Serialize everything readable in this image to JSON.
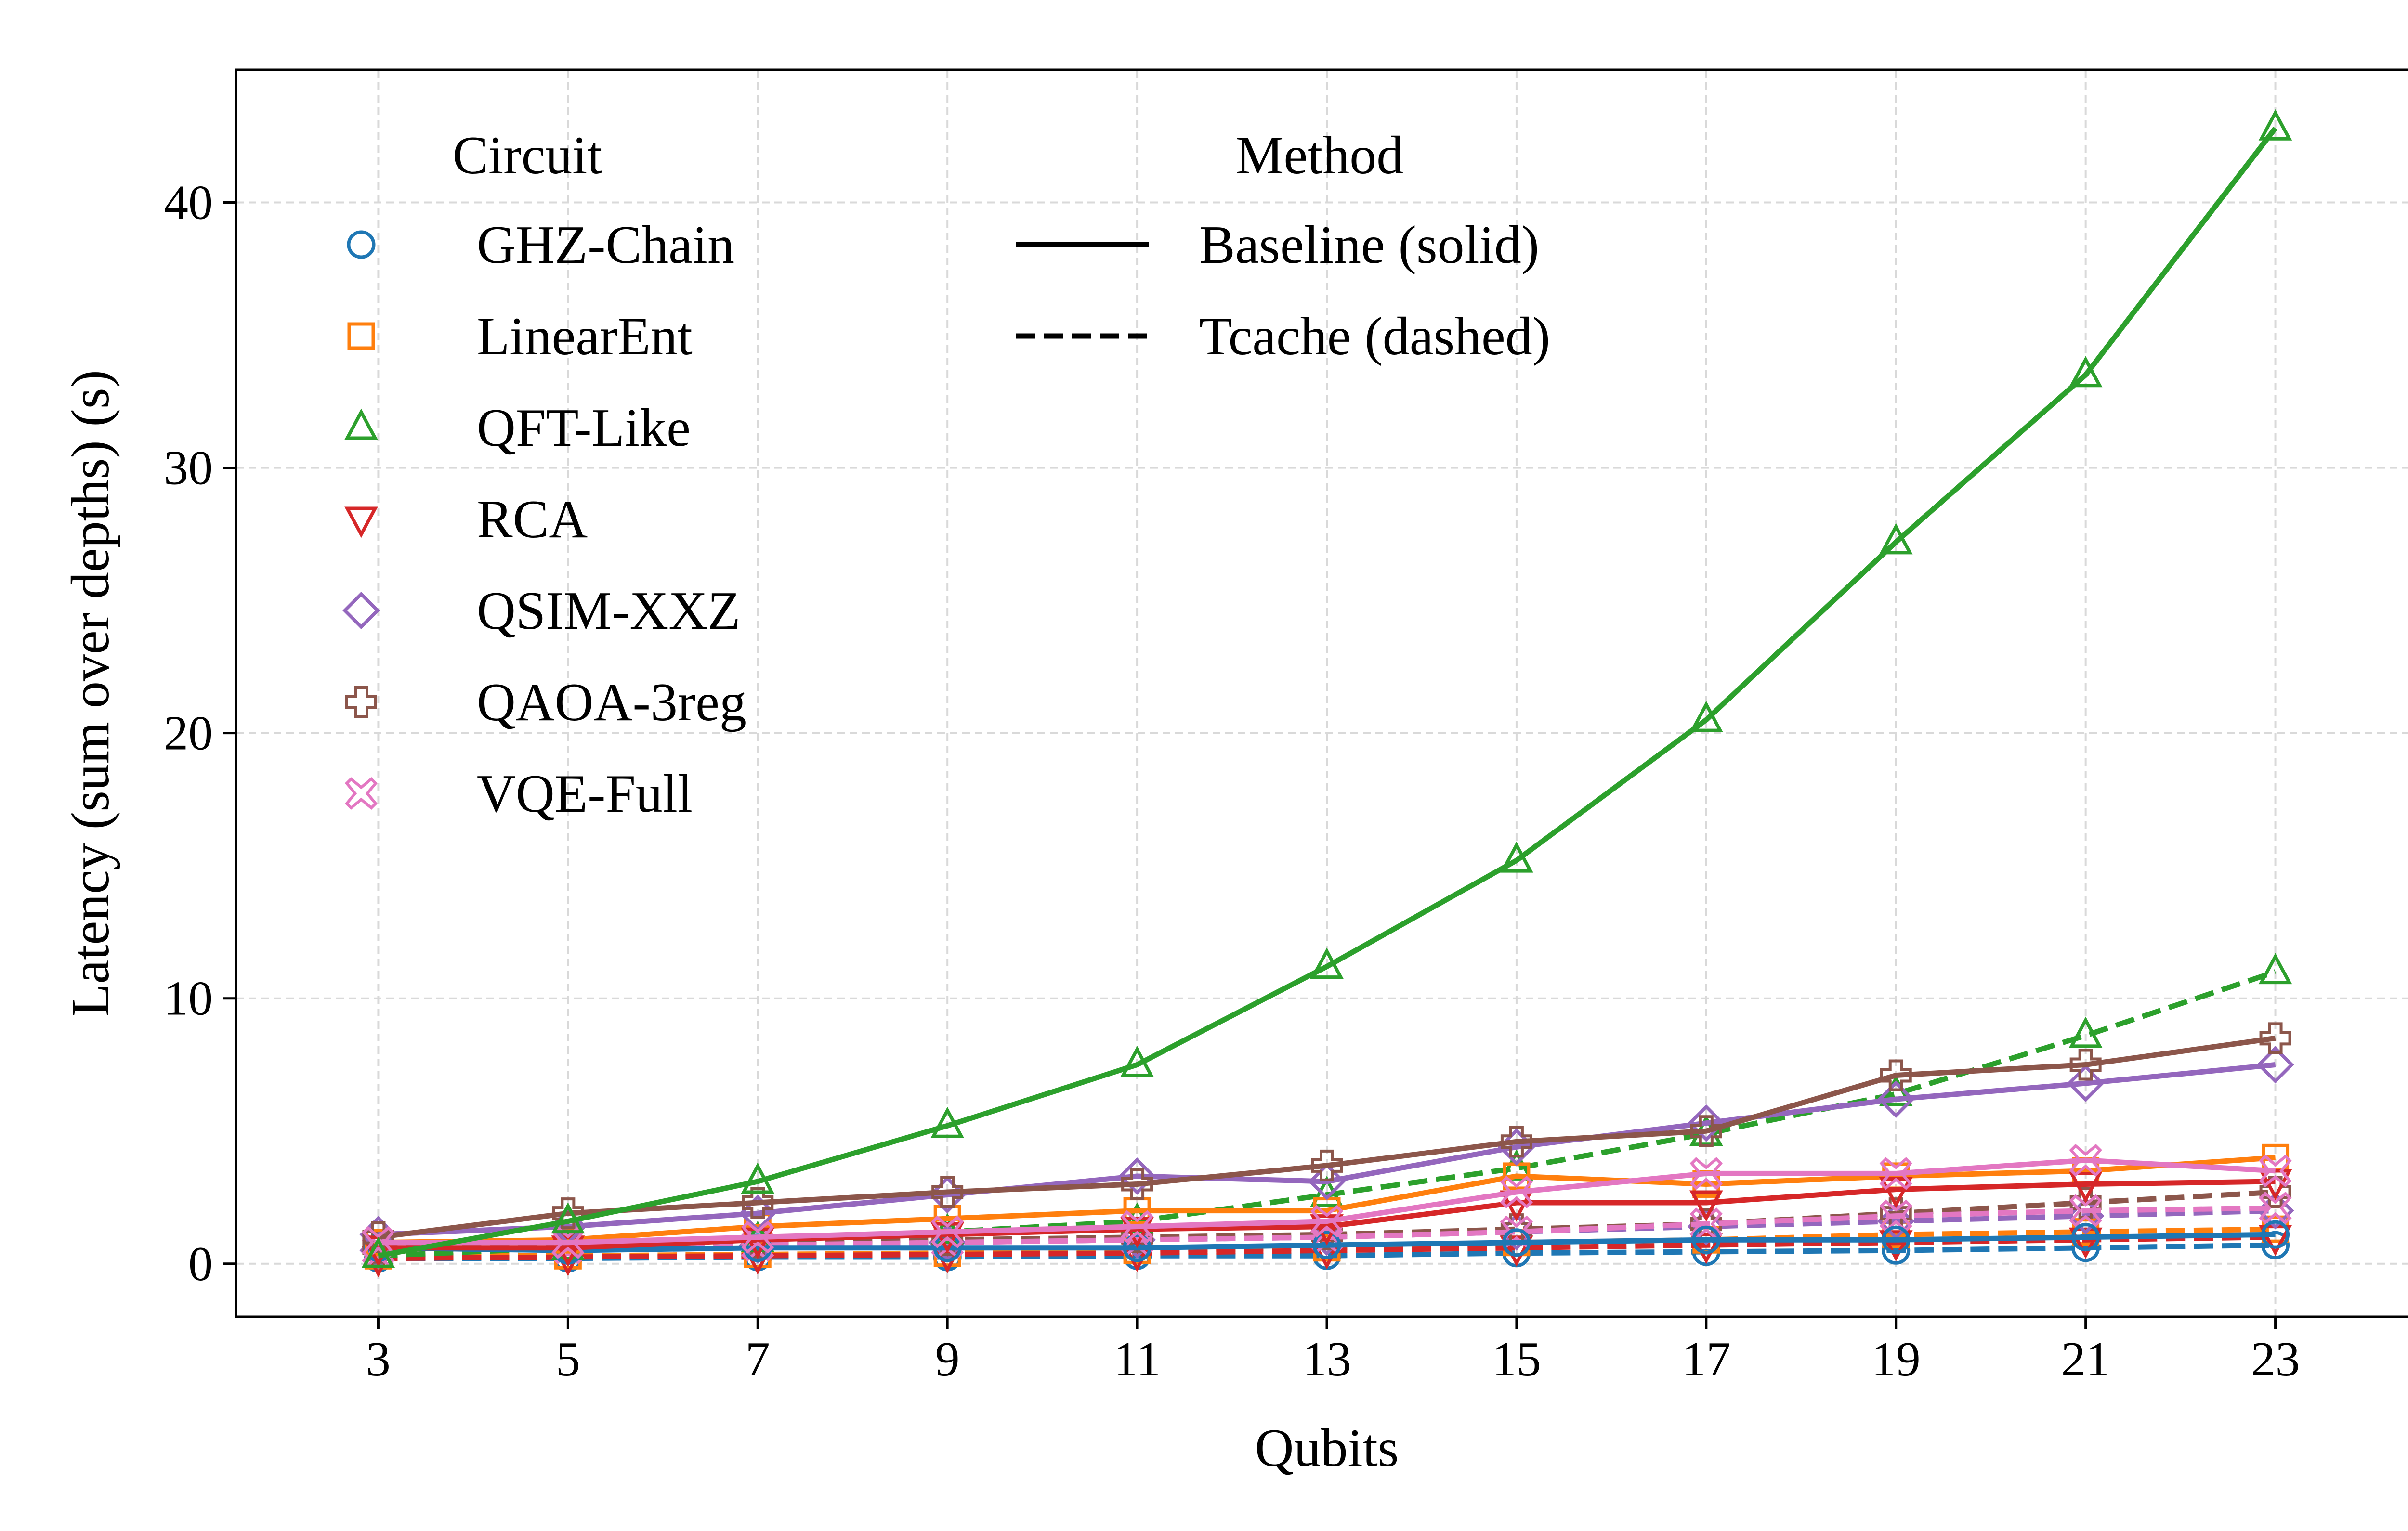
{
  "chart_data": {
    "type": "line",
    "xlabel": "Qubits",
    "ylabel": "Latency (sum over depths) (s)",
    "x": [
      3,
      5,
      7,
      9,
      11,
      13,
      15,
      17,
      19,
      21,
      23
    ],
    "xlim": [
      1.5,
      24.5
    ],
    "ylim": [
      -2,
      45
    ],
    "xticks": [
      3,
      5,
      7,
      9,
      11,
      13,
      15,
      17,
      19,
      21,
      23
    ],
    "yticks": [
      0,
      10,
      20,
      30,
      40
    ],
    "grid": true,
    "legends": [
      {
        "title": "Circuit",
        "placement": "top-left",
        "entries": [
          {
            "label": "GHZ-Chain",
            "color": "#1f77b4",
            "marker": "circle"
          },
          {
            "label": "LinearEnt",
            "color": "#ff7f0e",
            "marker": "square"
          },
          {
            "label": "QFT-Like",
            "color": "#2ca02c",
            "marker": "triangle-up"
          },
          {
            "label": "RCA",
            "color": "#d62728",
            "marker": "triangle-down"
          },
          {
            "label": "QSIM-XXZ",
            "color": "#9467bd",
            "marker": "diamond"
          },
          {
            "label": "QAOA-3reg",
            "color": "#8c564b",
            "marker": "plus"
          },
          {
            "label": "VQE-Full",
            "color": "#e377c2",
            "marker": "x"
          }
        ]
      },
      {
        "title": "Method",
        "placement": "top-center",
        "entries": [
          {
            "label": "Baseline (solid)",
            "linestyle": "solid"
          },
          {
            "label": "Tcache (dashed)",
            "linestyle": "dashed"
          }
        ]
      }
    ],
    "series": [
      {
        "circuit": "GHZ-Chain",
        "method": "Tcache",
        "color": "#1f77b4",
        "marker": "circle",
        "dashed": true,
        "values": [
          0.2,
          0.2,
          0.25,
          0.25,
          0.3,
          0.3,
          0.4,
          0.45,
          0.5,
          0.6,
          0.7
        ]
      },
      {
        "circuit": "LinearEnt",
        "method": "Tcache",
        "color": "#ff7f0e",
        "marker": "square",
        "dashed": true,
        "values": [
          0.3,
          0.3,
          0.35,
          0.4,
          0.5,
          0.6,
          0.8,
          0.9,
          1.1,
          1.2,
          1.3
        ]
      },
      {
        "circuit": "RCA",
        "method": "Tcache",
        "color": "#d62728",
        "marker": "triangle-down",
        "dashed": true,
        "values": [
          0.2,
          0.25,
          0.3,
          0.35,
          0.4,
          0.5,
          0.6,
          0.7,
          0.8,
          0.9,
          1.0
        ]
      },
      {
        "circuit": "QSIM-XXZ",
        "method": "Tcache",
        "color": "#9467bd",
        "marker": "diamond",
        "dashed": true,
        "values": [
          0.5,
          0.6,
          0.7,
          0.8,
          0.9,
          1.0,
          1.2,
          1.4,
          1.6,
          1.8,
          2.0
        ]
      },
      {
        "circuit": "QAOA-3reg",
        "method": "Tcache",
        "color": "#8c564b",
        "marker": "plus",
        "dashed": true,
        "values": [
          0.6,
          0.7,
          0.8,
          0.9,
          1.0,
          1.1,
          1.3,
          1.5,
          1.9,
          2.3,
          2.7
        ]
      },
      {
        "circuit": "VQE-Full",
        "method": "Tcache",
        "color": "#e377c2",
        "marker": "x",
        "dashed": true,
        "values": [
          0.5,
          0.6,
          0.7,
          0.8,
          0.9,
          1.0,
          1.2,
          1.5,
          1.8,
          2.0,
          2.1
        ]
      },
      {
        "circuit": "QFT-Like",
        "method": "Tcache",
        "color": "#2ca02c",
        "marker": "triangle-up",
        "dashed": true,
        "values": [
          0.3,
          0.6,
          0.9,
          1.2,
          1.6,
          2.6,
          3.6,
          4.9,
          6.4,
          8.6,
          11.0
        ]
      },
      {
        "circuit": "GHZ-Chain",
        "method": "Baseline",
        "color": "#1f77b4",
        "marker": "circle",
        "dashed": false,
        "values": [
          0.6,
          0.5,
          0.6,
          0.6,
          0.6,
          0.7,
          0.8,
          0.9,
          0.9,
          1.0,
          1.1
        ]
      },
      {
        "circuit": "LinearEnt",
        "method": "Baseline",
        "color": "#ff7f0e",
        "marker": "square",
        "dashed": false,
        "values": [
          0.8,
          0.9,
          1.4,
          1.7,
          2.0,
          2.0,
          3.3,
          3.0,
          3.3,
          3.5,
          4.0
        ]
      },
      {
        "circuit": "RCA",
        "method": "Baseline",
        "color": "#d62728",
        "marker": "triangle-down",
        "dashed": false,
        "values": [
          0.6,
          0.6,
          0.9,
          1.1,
          1.3,
          1.4,
          2.3,
          2.3,
          2.8,
          3.0,
          3.1
        ]
      },
      {
        "circuit": "QSIM-XXZ",
        "method": "Baseline",
        "color": "#9467bd",
        "marker": "diamond",
        "dashed": false,
        "values": [
          1.1,
          1.4,
          1.9,
          2.6,
          3.3,
          3.1,
          4.4,
          5.3,
          6.2,
          6.8,
          7.5
        ]
      },
      {
        "circuit": "QAOA-3reg",
        "method": "Baseline",
        "color": "#8c564b",
        "marker": "plus",
        "dashed": false,
        "values": [
          1.0,
          1.9,
          2.3,
          2.7,
          3.0,
          3.7,
          4.6,
          5.0,
          7.1,
          7.5,
          8.5
        ]
      },
      {
        "circuit": "VQE-Full",
        "method": "Baseline",
        "color": "#e377c2",
        "marker": "x",
        "dashed": false,
        "values": [
          0.8,
          0.8,
          1.0,
          1.2,
          1.4,
          1.6,
          2.7,
          3.4,
          3.4,
          3.9,
          3.5
        ]
      },
      {
        "circuit": "QFT-Like",
        "method": "Baseline",
        "color": "#2ca02c",
        "marker": "triangle-up",
        "dashed": false,
        "values": [
          0.3,
          1.6,
          3.1,
          5.2,
          7.5,
          11.2,
          15.2,
          20.5,
          27.2,
          33.5,
          42.8
        ]
      }
    ]
  }
}
